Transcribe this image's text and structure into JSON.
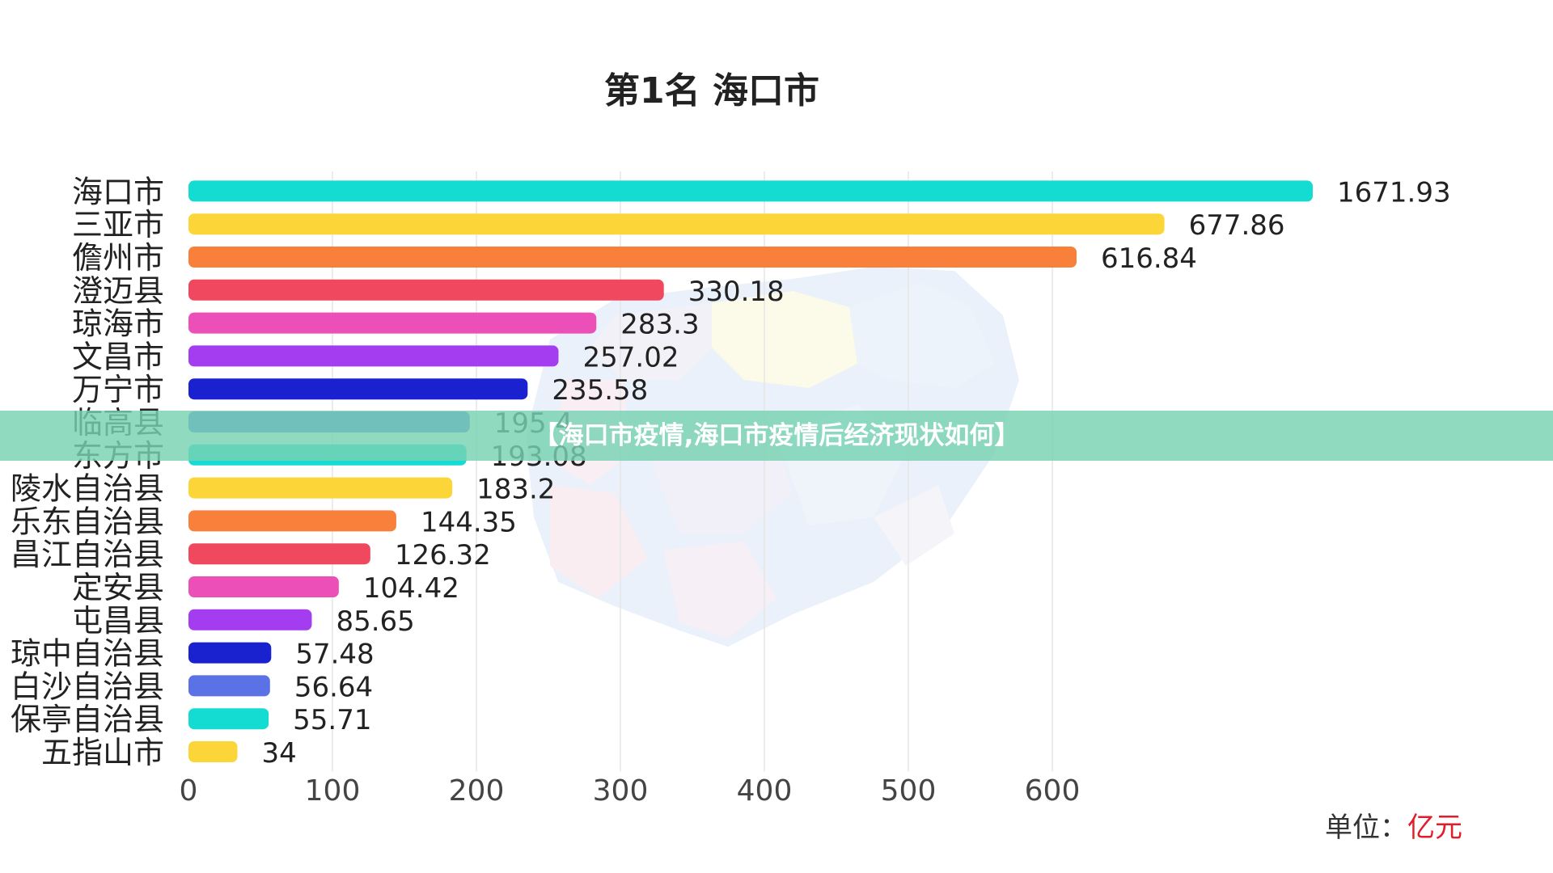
{
  "chart_data": {
    "type": "bar",
    "orientation": "horizontal",
    "title": "第1名 海口市",
    "categories": [
      "海口市",
      "三亚市",
      "儋州市",
      "澄迈县",
      "琼海市",
      "文昌市",
      "万宁市",
      "临高县",
      "东方市",
      "陵水自治县",
      "乐东自治县",
      "昌江自治县",
      "定安县",
      "屯昌县",
      "琼中自治县",
      "白沙自治县",
      "保亭自治县",
      "五指山市"
    ],
    "values": [
      1671.93,
      677.86,
      616.84,
      330.18,
      283.3,
      257.02,
      235.58,
      195.4,
      193.08,
      183.2,
      144.35,
      126.32,
      104.42,
      85.65,
      57.48,
      56.64,
      55.71,
      34
    ],
    "value_labels": [
      "1671.93",
      "677.86",
      "616.84",
      "330.18",
      "283.3",
      "257.02",
      "235.58",
      "195.4",
      "193.08",
      "183.2",
      "144.35",
      "126.32",
      "104.42",
      "85.65",
      "57.48",
      "56.64",
      "55.71",
      "34"
    ],
    "colors": [
      "#15dcd2",
      "#fcd638",
      "#f9803b",
      "#f0495f",
      "#ec4fb8",
      "#a43cf0",
      "#1a22cf",
      "#5b72e6",
      "#15dcd2",
      "#fcd638",
      "#f9803b",
      "#f0495f",
      "#ec4fb8",
      "#a43cf0",
      "#1a22cf",
      "#5b72e6",
      "#15dcd2",
      "#fcd638"
    ],
    "xticks": [
      "0",
      "100",
      "200",
      "300",
      "400",
      "500",
      "600"
    ],
    "xlim": [
      0,
      780
    ],
    "xgrid": true,
    "note": "bars beyond the axis maximum are truncated at the right edge",
    "unit_label": "单位：",
    "unit_value": "亿元"
  },
  "banner": {
    "text": "【海口市疫情,海口市疫情后经济现状如何】"
  }
}
